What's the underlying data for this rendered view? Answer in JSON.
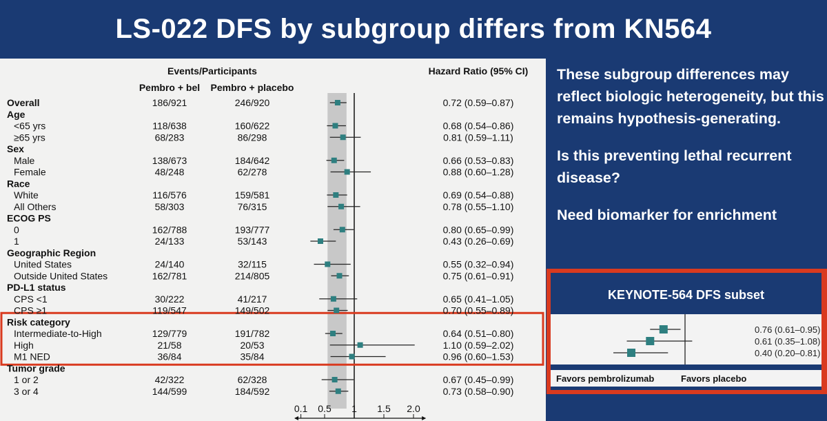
{
  "title": "LS-022 DFS by subgroup differs from KN564",
  "notes": [
    "These subgroup differences may reflect biologic heterogeneity, but this remains hypothesis-generating.",
    "Is this preventing lethal recurrent disease?",
    "Need biomarker for enrichment"
  ],
  "colors": {
    "background": "#1a3a73",
    "highlight_box": "#d93a1f",
    "marker": "#2e7f80",
    "ci_band": "#c8c8c8"
  },
  "chart_data": [
    {
      "type": "forest",
      "headers": {
        "events": "Events/Participants",
        "arm1": "Pembro + bel",
        "arm2": "Pembro + placebo",
        "hr": "Hazard Ratio (95% CI)"
      },
      "x_ticks": [
        "0.1",
        "0.5",
        "1",
        "1.5",
        "2.0"
      ],
      "xlim": [
        0,
        2.2
      ],
      "reference": 1,
      "band": [
        0.55,
        0.87
      ],
      "highlighted_group": "Risk category",
      "rows": [
        {
          "label": "Overall",
          "heading": true,
          "arm1": "186/921",
          "arm2": "246/920",
          "hr": 0.72,
          "lo": 0.59,
          "hi": 0.87,
          "text": "0.72 (0.59–0.87)"
        },
        {
          "label": "Age",
          "heading": true
        },
        {
          "label": "<65 yrs",
          "arm1": "118/638",
          "arm2": "160/622",
          "hr": 0.68,
          "lo": 0.54,
          "hi": 0.86,
          "text": "0.68 (0.54–0.86)"
        },
        {
          "label": "≥65 yrs",
          "arm1": "68/283",
          "arm2": "86/298",
          "hr": 0.81,
          "lo": 0.59,
          "hi": 1.11,
          "text": "0.81 (0.59–1.11)"
        },
        {
          "label": "Sex",
          "heading": true
        },
        {
          "label": "Male",
          "arm1": "138/673",
          "arm2": "184/642",
          "hr": 0.66,
          "lo": 0.53,
          "hi": 0.83,
          "text": "0.66 (0.53–0.83)"
        },
        {
          "label": "Female",
          "arm1": "48/248",
          "arm2": "62/278",
          "hr": 0.88,
          "lo": 0.6,
          "hi": 1.28,
          "text": "0.88 (0.60–1.28)"
        },
        {
          "label": "Race",
          "heading": true
        },
        {
          "label": "White",
          "arm1": "116/576",
          "arm2": "159/581",
          "hr": 0.69,
          "lo": 0.54,
          "hi": 0.88,
          "text": "0.69 (0.54–0.88)"
        },
        {
          "label": "All Others",
          "arm1": "58/303",
          "arm2": "76/315",
          "hr": 0.78,
          "lo": 0.55,
          "hi": 1.1,
          "text": "0.78 (0.55–1.10)"
        },
        {
          "label": "ECOG PS",
          "heading": true
        },
        {
          "label": "0",
          "arm1": "162/788",
          "arm2": "193/777",
          "hr": 0.8,
          "lo": 0.65,
          "hi": 0.99,
          "text": "0.80 (0.65–0.99)"
        },
        {
          "label": "1",
          "arm1": "24/133",
          "arm2": "53/143",
          "hr": 0.43,
          "lo": 0.26,
          "hi": 0.69,
          "text": "0.43 (0.26–0.69)"
        },
        {
          "label": "Geographic Region",
          "heading": true
        },
        {
          "label": "United States",
          "arm1": "24/140",
          "arm2": "32/115",
          "hr": 0.55,
          "lo": 0.32,
          "hi": 0.94,
          "text": "0.55 (0.32–0.94)"
        },
        {
          "label": "Outside United States",
          "arm1": "162/781",
          "arm2": "214/805",
          "hr": 0.75,
          "lo": 0.61,
          "hi": 0.91,
          "text": "0.75 (0.61–0.91)"
        },
        {
          "label": "PD-L1 status",
          "heading": true
        },
        {
          "label": "CPS <1",
          "arm1": "30/222",
          "arm2": "41/217",
          "hr": 0.65,
          "lo": 0.41,
          "hi": 1.05,
          "text": "0.65 (0.41–1.05)"
        },
        {
          "label": "CPS ≥1",
          "arm1": "119/547",
          "arm2": "149/502",
          "hr": 0.7,
          "lo": 0.55,
          "hi": 0.89,
          "text": "0.70 (0.55–0.89)"
        },
        {
          "label": "Risk category",
          "heading": true
        },
        {
          "label": "Intermediate-to-High",
          "arm1": "129/779",
          "arm2": "191/782",
          "hr": 0.64,
          "lo": 0.51,
          "hi": 0.8,
          "text": "0.64 (0.51–0.80)"
        },
        {
          "label": "High",
          "arm1": "21/58",
          "arm2": "20/53",
          "hr": 1.1,
          "lo": 0.59,
          "hi": 2.02,
          "text": "1.10 (0.59–2.02)"
        },
        {
          "label": "M1 NED",
          "arm1": "36/84",
          "arm2": "35/84",
          "hr": 0.96,
          "lo": 0.6,
          "hi": 1.53,
          "text": "0.96 (0.60–1.53)"
        },
        {
          "label": "Tumor grade",
          "heading": true
        },
        {
          "label": "1 or 2",
          "arm1": "42/322",
          "arm2": "62/328",
          "hr": 0.67,
          "lo": 0.45,
          "hi": 0.99,
          "text": "0.67 (0.45–0.99)"
        },
        {
          "label": "3 or 4",
          "arm1": "144/599",
          "arm2": "184/592",
          "hr": 0.73,
          "lo": 0.58,
          "hi": 0.9,
          "text": "0.73 (0.58–0.90)"
        }
      ]
    },
    {
      "type": "forest",
      "title": "KEYNOTE-564 DFS subset",
      "reference": 1,
      "rows": [
        {
          "hr": 0.76,
          "lo": 0.61,
          "hi": 0.95,
          "text": "0.76 (0.61–0.95)"
        },
        {
          "hr": 0.61,
          "lo": 0.35,
          "hi": 1.08,
          "text": "0.61 (0.35–1.08)"
        },
        {
          "hr": 0.4,
          "lo": 0.2,
          "hi": 0.81,
          "text": "0.40 (0.20–0.81)"
        }
      ],
      "favors_left": "Favors pembrolizumab",
      "favors_right": "Favors placebo"
    }
  ]
}
